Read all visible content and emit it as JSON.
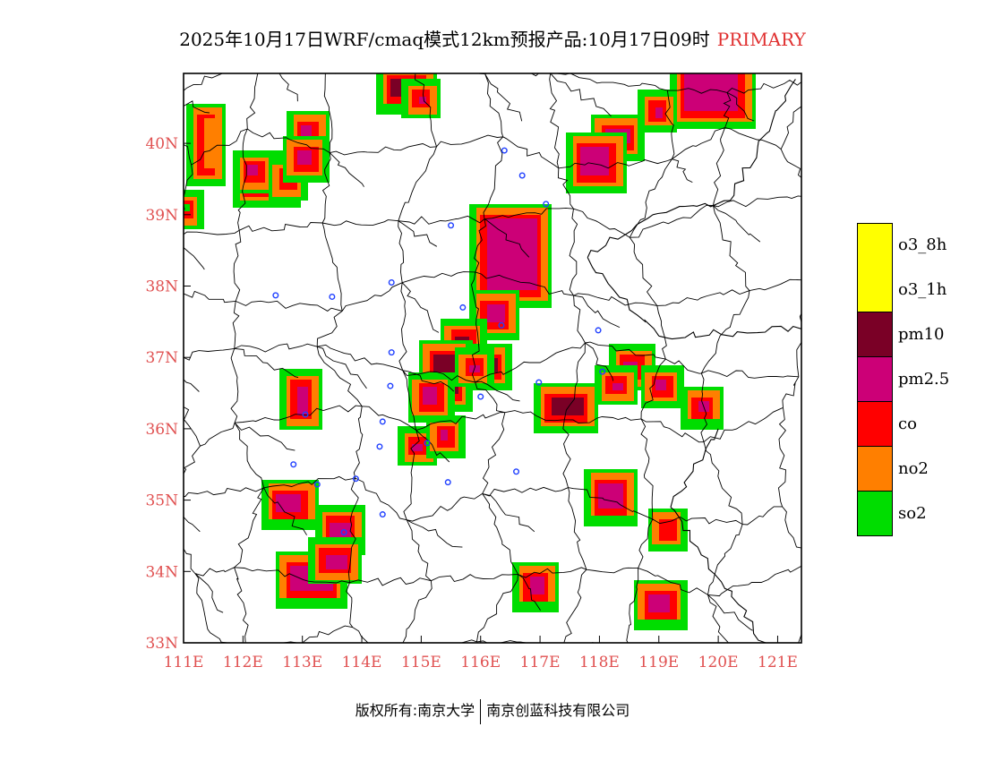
{
  "title": {
    "text": "2025年10月17日WRF/cmaq模式12km预报产品:10月17日09时",
    "tag": "PRIMARY"
  },
  "colors": {
    "o3_8h": "#ffff00",
    "o3_1h": "#ffff00",
    "pm10": "#7a0026",
    "pm2_5": "#cc0077",
    "co": "#ff0000",
    "no2": "#ff7f00",
    "so2": "#00dd00",
    "city": "#2040ff",
    "boundary": "#000000",
    "tick": "#e05050"
  },
  "axes": {
    "lon_labels": [
      "111E",
      "112E",
      "113E",
      "114E",
      "115E",
      "116E",
      "117E",
      "118E",
      "119E",
      "120E",
      "121E"
    ],
    "lat_labels": [
      "33N",
      "34N",
      "35N",
      "36N",
      "37N",
      "38N",
      "39N",
      "40N"
    ],
    "lon_range": [
      111,
      121.4
    ],
    "lat_range": [
      33,
      40.98
    ]
  },
  "legend": [
    {
      "key": "o3_8h",
      "label": "o3_8h",
      "color": "#ffff00"
    },
    {
      "key": "o3_1h",
      "label": "o3_1h",
      "color": "#ffff00"
    },
    {
      "key": "pm10",
      "label": "pm10",
      "color": "#7a0026"
    },
    {
      "key": "pm2_5",
      "label": "pm2.5",
      "color": "#cc0077"
    },
    {
      "key": "co",
      "label": "co",
      "color": "#ff0000"
    },
    {
      "key": "no2",
      "label": "no2",
      "color": "#ff7f00"
    },
    {
      "key": "so2",
      "label": "so2",
      "color": "#00dd00"
    }
  ],
  "pollution_patches": [
    {
      "lon": 112.4,
      "lat": 39.5,
      "rx": 0.3,
      "ry": 0.17,
      "inner": "pm10"
    },
    {
      "lon": 112.2,
      "lat": 39.6,
      "rx": 0.1,
      "ry": 0.08,
      "inner": "pm2_5"
    },
    {
      "lon": 112.75,
      "lat": 39.5,
      "rx": 0.08,
      "ry": 0.08,
      "inner": "co"
    },
    {
      "lon": 113.1,
      "lat": 40.1,
      "rx": 0.1,
      "ry": 0.14,
      "inner": "pm2_5"
    },
    {
      "lon": 113.05,
      "lat": 39.8,
      "rx": 0.13,
      "ry": 0.1,
      "inner": "pm2_5"
    },
    {
      "lon": 111.4,
      "lat": 40.0,
      "rx": 0.08,
      "ry": 0.35,
      "inner": "no2"
    },
    {
      "lon": 111.05,
      "lat": 39.07,
      "rx": 0.05,
      "ry": 0.06,
      "inner": "so2"
    },
    {
      "lon": 114.75,
      "lat": 40.78,
      "rx": 0.25,
      "ry": 0.12,
      "inner": "pm10"
    },
    {
      "lon": 115.0,
      "lat": 40.6,
      "rx": 0.06,
      "ry": 0.06,
      "inner": "pm2_5"
    },
    {
      "lon": 119.9,
      "lat": 40.75,
      "rx": 0.45,
      "ry": 0.3,
      "inner": "pm2_5"
    },
    {
      "lon": 119.0,
      "lat": 40.45,
      "rx": 0.07,
      "ry": 0.07,
      "inner": "pm2_5"
    },
    {
      "lon": 118.3,
      "lat": 40.1,
      "rx": 0.2,
      "ry": 0.1,
      "inner": "pm2_5"
    },
    {
      "lon": 117.95,
      "lat": 39.75,
      "rx": 0.25,
      "ry": 0.2,
      "inner": "pm2_5"
    },
    {
      "lon": 116.5,
      "lat": 38.45,
      "rx": 0.42,
      "ry": 0.5,
      "inner": "pm2_5"
    },
    {
      "lon": 116.25,
      "lat": 37.6,
      "rx": 0.15,
      "ry": 0.13,
      "inner": "pm2_5"
    },
    {
      "lon": 115.7,
      "lat": 37.1,
      "rx": 0.13,
      "ry": 0.2,
      "inner": "pm10"
    },
    {
      "lon": 115.4,
      "lat": 36.75,
      "rx": 0.2,
      "ry": 0.28,
      "inner": "pm10"
    },
    {
      "lon": 115.15,
      "lat": 36.45,
      "rx": 0.12,
      "ry": 0.12,
      "inner": "pm2_5"
    },
    {
      "lon": 116.2,
      "lat": 36.88,
      "rx": 0.08,
      "ry": 0.1,
      "inner": "pm10"
    },
    {
      "lon": 115.9,
      "lat": 36.85,
      "rx": 0.08,
      "ry": 0.05,
      "inner": "pm2_5"
    },
    {
      "lon": 114.95,
      "lat": 35.75,
      "rx": 0.08,
      "ry": 0.06,
      "inner": "pm2_5"
    },
    {
      "lon": 115.4,
      "lat": 35.9,
      "rx": 0.06,
      "ry": 0.07,
      "inner": "pm2_5"
    },
    {
      "lon": 117.45,
      "lat": 36.3,
      "rx": 0.27,
      "ry": 0.13,
      "inner": "pm10"
    },
    {
      "lon": 118.55,
      "lat": 36.85,
      "rx": 0.12,
      "ry": 0.1,
      "inner": "pm2_5"
    },
    {
      "lon": 119.05,
      "lat": 36.6,
      "rx": 0.1,
      "ry": 0.07,
      "inner": "pm2_5"
    },
    {
      "lon": 118.3,
      "lat": 36.6,
      "rx": 0.1,
      "ry": 0.06,
      "inner": "pm2_5"
    },
    {
      "lon": 119.75,
      "lat": 36.32,
      "rx": 0.1,
      "ry": 0.07,
      "inner": "pm2_5"
    },
    {
      "lon": 113.0,
      "lat": 36.4,
      "rx": 0.1,
      "ry": 0.2,
      "inner": "pm2_5"
    },
    {
      "lon": 112.8,
      "lat": 34.95,
      "rx": 0.22,
      "ry": 0.12,
      "inner": "pm2_5"
    },
    {
      "lon": 113.65,
      "lat": 34.55,
      "rx": 0.17,
      "ry": 0.14,
      "inner": "pm2_5"
    },
    {
      "lon": 113.15,
      "lat": 33.9,
      "rx": 0.35,
      "ry": 0.17,
      "inner": "pm2_5"
    },
    {
      "lon": 113.55,
      "lat": 34.15,
      "rx": 0.18,
      "ry": 0.1,
      "inner": "pm2_5"
    },
    {
      "lon": 118.2,
      "lat": 35.05,
      "rx": 0.2,
      "ry": 0.17,
      "inner": "pm2_5"
    },
    {
      "lon": 119.15,
      "lat": 34.6,
      "rx": 0.07,
      "ry": 0.08,
      "inner": "co"
    },
    {
      "lon": 116.95,
      "lat": 33.8,
      "rx": 0.13,
      "ry": 0.12,
      "inner": "pm2_5"
    },
    {
      "lon": 119.0,
      "lat": 33.55,
      "rx": 0.18,
      "ry": 0.12,
      "inner": "pm2_5"
    }
  ],
  "cities": [
    [
      116.4,
      39.9
    ],
    [
      116.7,
      39.55
    ],
    [
      117.1,
      39.15
    ],
    [
      115.5,
      38.85
    ],
    [
      112.55,
      37.87
    ],
    [
      113.5,
      37.85
    ],
    [
      114.5,
      38.05
    ],
    [
      115.7,
      37.7
    ],
    [
      116.35,
      37.45
    ],
    [
      117.98,
      37.38
    ],
    [
      114.5,
      37.07
    ],
    [
      114.48,
      36.6
    ],
    [
      116.0,
      36.45
    ],
    [
      116.98,
      36.65
    ],
    [
      118.05,
      36.8
    ],
    [
      114.35,
      36.1
    ],
    [
      113.05,
      36.2
    ],
    [
      114.3,
      35.75
    ],
    [
      115.1,
      35.8
    ],
    [
      112.85,
      35.5
    ],
    [
      113.25,
      35.22
    ],
    [
      113.9,
      35.3
    ],
    [
      115.45,
      35.25
    ],
    [
      116.6,
      35.4
    ],
    [
      114.35,
      34.8
    ],
    [
      113.7,
      34.55
    ]
  ],
  "boundary_seed": 20251017,
  "footer": {
    "left": "版权所有:南京大学",
    "right": "南京创蓝科技有限公司"
  }
}
